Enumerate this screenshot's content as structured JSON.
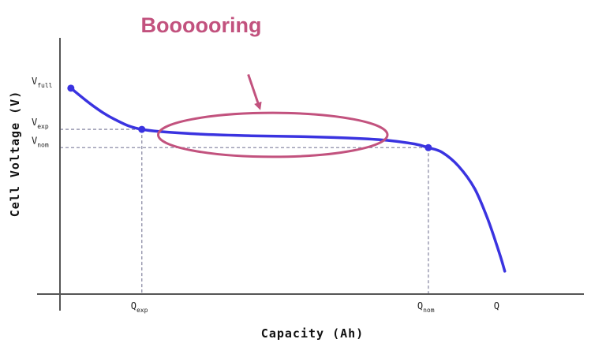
{
  "chart_data": {
    "type": "line",
    "title": "",
    "xlabel": "Capacity (Ah)",
    "ylabel": "Cell Voltage (V)",
    "x_ticks": [
      {
        "key": "q_exp",
        "base": "Q",
        "sub": "exp",
        "x": 1.5
      },
      {
        "key": "q_nom",
        "base": "Q",
        "sub": "nom",
        "x": 6.75
      },
      {
        "key": "q",
        "base": "Q",
        "sub": "",
        "x": 8.15
      }
    ],
    "y_ticks": [
      {
        "key": "v_full",
        "base": "V",
        "sub": "full",
        "y": 4.05
      },
      {
        "key": "v_exp",
        "base": "V",
        "sub": "exp",
        "y": 3.6
      },
      {
        "key": "v_nom",
        "base": "V",
        "sub": "nom",
        "y": 3.4
      }
    ],
    "xlim": [
      0,
      9.6
    ],
    "ylim": [
      1.8,
      4.6
    ],
    "grid": false,
    "series": [
      {
        "color": "#3a33e0",
        "x": [
          0.2,
          0.6,
          1.0,
          1.5,
          2.5,
          3.5,
          4.5,
          5.5,
          6.0,
          6.5,
          6.75,
          7.0,
          7.3,
          7.6,
          7.85,
          8.05,
          8.15
        ],
        "y": [
          4.05,
          3.86,
          3.71,
          3.6,
          3.55,
          3.53,
          3.52,
          3.5,
          3.48,
          3.44,
          3.4,
          3.35,
          3.2,
          2.95,
          2.6,
          2.25,
          2.05
        ]
      }
    ],
    "markers": [
      {
        "x": 0.2,
        "y": 4.05
      },
      {
        "x": 1.5,
        "y": 3.6
      },
      {
        "x": 6.75,
        "y": 3.4
      }
    ],
    "annotation": {
      "text": "Boooooring",
      "color": "#c2527e",
      "ellipse_center": {
        "x": 3.9,
        "y": 3.54
      },
      "ellipse_radius": {
        "x": 2.1,
        "y": 0.24
      },
      "arrow_from": {
        "x": 3.45,
        "y": 4.2
      },
      "arrow_to": {
        "x": 3.65,
        "y": 3.85
      }
    },
    "axis_color": "#555555",
    "guide_color": "#8c8ca6"
  }
}
